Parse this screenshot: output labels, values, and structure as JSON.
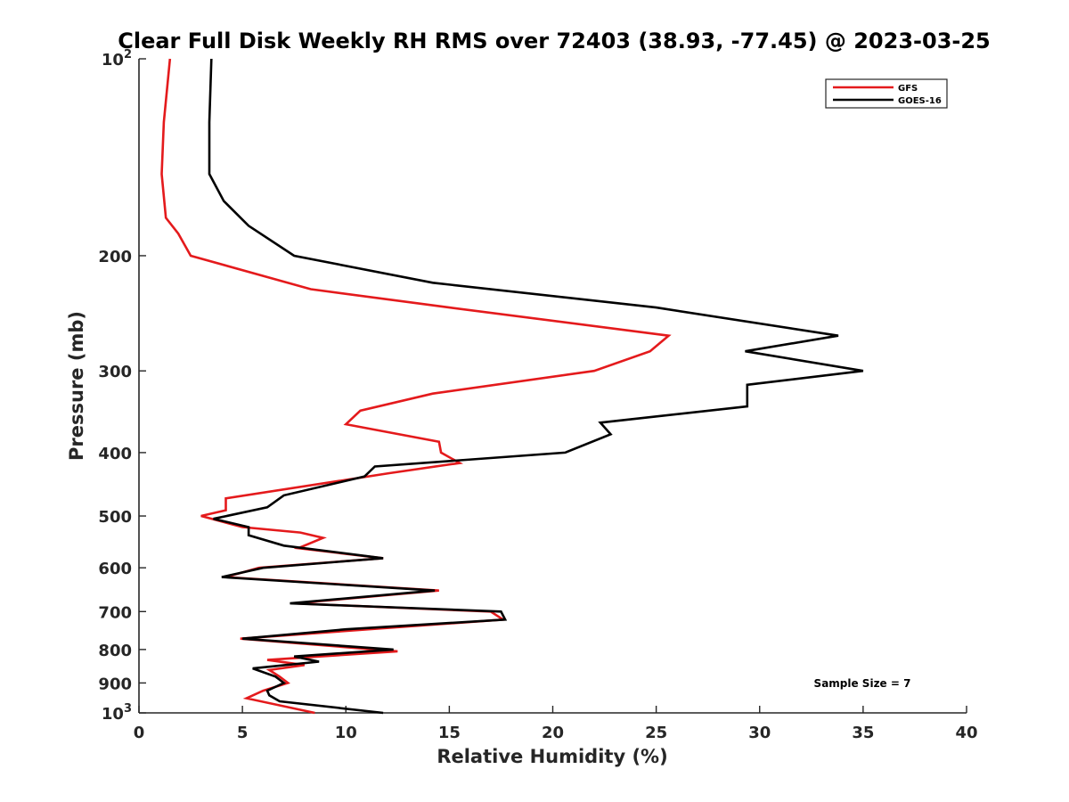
{
  "chart_data": {
    "type": "line",
    "title": "Clear Full Disk Weekly RH RMS over 72403 (38.93, -77.45) @ 2023-03-25",
    "xlabel": "Relative Humidity (%)",
    "ylabel": "Pressure (mb)",
    "xlim": [
      0,
      40
    ],
    "ylim": [
      100,
      1000
    ],
    "yscale": "log",
    "y_reversed": true,
    "grid": false,
    "legend_position": "top-right",
    "x_ticks": [
      "0",
      "5",
      "10",
      "15",
      "20",
      "25",
      "30",
      "35",
      "40"
    ],
    "y_ticks": [
      {
        "value": 100,
        "base": "10",
        "exp": "2"
      },
      {
        "value": 200,
        "label": "200"
      },
      {
        "value": 300,
        "label": "300"
      },
      {
        "value": 400,
        "label": "400"
      },
      {
        "value": 500,
        "label": "500"
      },
      {
        "value": 600,
        "label": "600"
      },
      {
        "value": 700,
        "label": "700"
      },
      {
        "value": 800,
        "label": "800"
      },
      {
        "value": 900,
        "label": "900"
      },
      {
        "value": 1000,
        "base": "10",
        "exp": "3"
      }
    ],
    "annotation": "Sample Size = 7",
    "series": [
      {
        "name": "GFS",
        "color": "#e41a1c",
        "points": [
          [
            1.5,
            100
          ],
          [
            1.2,
            125
          ],
          [
            1.1,
            150
          ],
          [
            1.3,
            175
          ],
          [
            1.9,
            185
          ],
          [
            2.5,
            200
          ],
          [
            8.3,
            225
          ],
          [
            15.0,
            240
          ],
          [
            25.6,
            265
          ],
          [
            24.7,
            280
          ],
          [
            22.0,
            300
          ],
          [
            14.2,
            325
          ],
          [
            10.7,
            345
          ],
          [
            10.0,
            362
          ],
          [
            14.5,
            385
          ],
          [
            14.6,
            400
          ],
          [
            15.5,
            415
          ],
          [
            12.1,
            430
          ],
          [
            4.2,
            470
          ],
          [
            4.2,
            490
          ],
          [
            3.0,
            500
          ],
          [
            5.0,
            520
          ],
          [
            7.8,
            530
          ],
          [
            8.9,
            540
          ],
          [
            7.7,
            560
          ],
          [
            11.8,
            580
          ],
          [
            5.8,
            600
          ],
          [
            4.2,
            620
          ],
          [
            14.5,
            650
          ],
          [
            7.5,
            680
          ],
          [
            17.0,
            700
          ],
          [
            17.6,
            720
          ],
          [
            4.9,
            770
          ],
          [
            12.5,
            805
          ],
          [
            6.2,
            830
          ],
          [
            8.0,
            845
          ],
          [
            6.3,
            860
          ],
          [
            6.8,
            880
          ],
          [
            7.2,
            900
          ],
          [
            6.0,
            925
          ],
          [
            5.2,
            950
          ],
          [
            8.5,
            1000
          ]
        ]
      },
      {
        "name": "GOES-16",
        "color": "#000000",
        "points": [
          [
            3.5,
            100
          ],
          [
            3.4,
            125
          ],
          [
            3.4,
            150
          ],
          [
            4.1,
            165
          ],
          [
            5.3,
            180
          ],
          [
            7.5,
            200
          ],
          [
            14.2,
            220
          ],
          [
            25.0,
            240
          ],
          [
            33.8,
            265
          ],
          [
            29.3,
            280
          ],
          [
            35.0,
            300
          ],
          [
            29.4,
            315
          ],
          [
            29.4,
            340
          ],
          [
            22.3,
            360
          ],
          [
            22.8,
            375
          ],
          [
            20.6,
            400
          ],
          [
            11.4,
            420
          ],
          [
            10.9,
            435
          ],
          [
            7.0,
            465
          ],
          [
            6.2,
            485
          ],
          [
            3.6,
            505
          ],
          [
            5.3,
            520
          ],
          [
            5.3,
            535
          ],
          [
            7.0,
            555
          ],
          [
            11.8,
            580
          ],
          [
            6.0,
            600
          ],
          [
            4.0,
            620
          ],
          [
            14.3,
            650
          ],
          [
            7.3,
            680
          ],
          [
            17.5,
            700
          ],
          [
            17.7,
            720
          ],
          [
            10.0,
            745
          ],
          [
            5.0,
            770
          ],
          [
            12.3,
            800
          ],
          [
            7.5,
            820
          ],
          [
            8.7,
            835
          ],
          [
            5.5,
            855
          ],
          [
            6.6,
            880
          ],
          [
            7.0,
            900
          ],
          [
            6.2,
            925
          ],
          [
            6.3,
            940
          ],
          [
            6.8,
            960
          ],
          [
            11.8,
            1000
          ]
        ]
      }
    ]
  }
}
